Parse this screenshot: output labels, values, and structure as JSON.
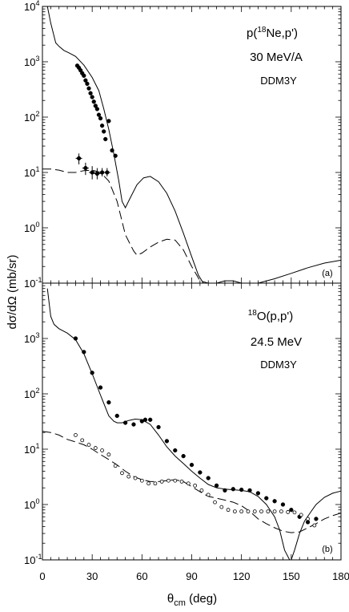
{
  "figure": {
    "ylabel": "dσ/dΩ (mb/sr)",
    "xlabel_main": "θ",
    "xlabel_sub": "cm",
    "xlabel_rest": " (deg)",
    "xticks": [
      "0",
      "30",
      "60",
      "90",
      "120",
      "150",
      "180"
    ]
  },
  "chart_data": [
    {
      "type": "scatter",
      "panel_tag": "(a)",
      "annotation": {
        "line1_pre": "p(",
        "line1_sup": "18",
        "line1_post": "Ne,p')",
        "line2": "30 MeV/A",
        "line3": "DDM3Y"
      },
      "xlim": [
        0,
        180
      ],
      "ylim": [
        0.1,
        10000
      ],
      "yscale": "log",
      "yticks": [
        {
          "base": "10",
          "exp": "4"
        },
        {
          "base": "10",
          "exp": "3"
        },
        {
          "base": "10",
          "exp": "2"
        },
        {
          "base": "10",
          "exp": "1"
        },
        {
          "base": "10",
          "exp": "0"
        },
        {
          "base": "10",
          "exp": "-1"
        }
      ],
      "series": [
        {
          "style": "solid-line",
          "x": [
            3,
            5,
            8,
            10,
            13,
            16,
            20,
            25,
            30,
            34,
            37,
            40,
            43,
            46,
            48,
            50,
            53,
            57,
            61,
            65,
            70,
            75,
            80,
            85,
            90,
            94,
            97,
            100,
            102,
            105,
            110,
            115,
            120,
            125,
            130,
            140,
            150,
            160,
            170,
            180
          ],
          "y": [
            10000,
            5000,
            2200,
            1900,
            1600,
            1450,
            1250,
            870,
            520,
            300,
            140,
            60,
            22,
            7.2,
            3.0,
            2.3,
            3.5,
            6.0,
            8.0,
            8.5,
            6.8,
            4.2,
            2.0,
            0.8,
            0.3,
            0.14,
            0.1,
            0.1,
            0.1,
            0.1,
            0.11,
            0.11,
            0.1,
            0.1,
            0.1,
            0.12,
            0.15,
            0.19,
            0.23,
            0.26
          ]
        },
        {
          "style": "dashed-line",
          "x": [
            0,
            5,
            10,
            15,
            20,
            25,
            30,
            35,
            40,
            45,
            50,
            53,
            55,
            57,
            60,
            65,
            70,
            75,
            80,
            85,
            90,
            95,
            100
          ],
          "y": [
            11.5,
            11.5,
            11.0,
            10.0,
            10.0,
            10.8,
            11.0,
            10.0,
            7.0,
            3.0,
            0.75,
            0.5,
            0.38,
            0.32,
            0.35,
            0.45,
            0.55,
            0.62,
            0.6,
            0.4,
            0.2,
            0.11,
            0.1
          ]
        },
        {
          "style": "filled-points",
          "x": [
            21,
            22,
            23,
            24,
            25,
            26,
            27,
            28,
            29,
            30,
            31,
            32,
            33,
            34,
            35,
            36,
            37,
            38,
            40,
            42,
            44
          ],
          "y": [
            850,
            780,
            700,
            620,
            560,
            460,
            400,
            330,
            270,
            230,
            190,
            160,
            140,
            110,
            95,
            70,
            55,
            40,
            85,
            25,
            20
          ]
        },
        {
          "style": "filled-points-with-errorbars",
          "x": [
            22,
            26,
            30,
            33,
            36,
            39
          ],
          "y": [
            18,
            12,
            10,
            9.5,
            10,
            10
          ],
          "err_lo": [
            14,
            9,
            7.5,
            7.5,
            8.5,
            8.5
          ],
          "err_hi": [
            22,
            15,
            13,
            12,
            12,
            12
          ]
        }
      ]
    },
    {
      "type": "scatter",
      "panel_tag": "(b)",
      "annotation": {
        "line1_pre": "",
        "line1_sup": "18",
        "line1_post": "O(p,p')",
        "line2": "24.5 MeV",
        "line3": "DDM3Y"
      },
      "xlim": [
        0,
        180
      ],
      "ylim": [
        0.1,
        10000
      ],
      "yscale": "log",
      "yticks": [
        {
          "base": "10",
          "exp": "3"
        },
        {
          "base": "10",
          "exp": "2"
        },
        {
          "base": "10",
          "exp": "1"
        },
        {
          "base": "10",
          "exp": "0"
        },
        {
          "base": "10",
          "exp": "-1"
        }
      ],
      "series": [
        {
          "style": "solid-line",
          "x": [
            3,
            5,
            7,
            10,
            15,
            20,
            25,
            30,
            35,
            40,
            43,
            45,
            48,
            52,
            56,
            60,
            65,
            70,
            75,
            80,
            85,
            90,
            95,
            100,
            105,
            110,
            115,
            120,
            125,
            130,
            135,
            140,
            143,
            146,
            149,
            150,
            152,
            155,
            158,
            162,
            165,
            170,
            175,
            180
          ],
          "y": [
            8000,
            2500,
            1800,
            1500,
            1250,
            950,
            530,
            230,
            95,
            40,
            32,
            30,
            30,
            33,
            35,
            34,
            28,
            18,
            11,
            7.5,
            5.5,
            4.0,
            3.0,
            2.3,
            2.0,
            1.9,
            1.85,
            1.8,
            1.7,
            1.4,
            1.0,
            0.6,
            0.35,
            0.15,
            0.1,
            0.1,
            0.15,
            0.3,
            0.5,
            0.75,
            1.0,
            1.35,
            1.6,
            1.75
          ]
        },
        {
          "style": "dashed-line",
          "x": [
            0,
            5,
            10,
            15,
            20,
            25,
            30,
            35,
            40,
            45,
            50,
            55,
            60,
            65,
            70,
            75,
            80,
            85,
            90,
            95,
            100,
            105,
            110,
            115,
            120,
            125,
            130,
            135,
            140,
            145,
            150,
            155,
            160,
            165,
            170,
            175,
            180
          ],
          "y": [
            21,
            20,
            18,
            15,
            13.5,
            12,
            10,
            8,
            6.5,
            5.2,
            4.0,
            3.2,
            2.8,
            2.6,
            2.6,
            2.7,
            2.8,
            2.6,
            2.1,
            1.7,
            1.4,
            1.3,
            1.2,
            1.1,
            0.95,
            0.75,
            0.55,
            0.45,
            0.38,
            0.33,
            0.31,
            0.32,
            0.38,
            0.45,
            0.55,
            0.63,
            0.7
          ]
        },
        {
          "style": "filled-points",
          "x": [
            20,
            25,
            30,
            35,
            40,
            45,
            50,
            55,
            60,
            62,
            65,
            70,
            75,
            80,
            85,
            90,
            95,
            100,
            105,
            110,
            115,
            120,
            125,
            130,
            135,
            140,
            145,
            150,
            155,
            160,
            165
          ],
          "y": [
            1000,
            570,
            240,
            130,
            70,
            40,
            30,
            28,
            32,
            34,
            34,
            25,
            14,
            9.5,
            7.5,
            5.2,
            3.8,
            3.0,
            2.2,
            1.8,
            1.9,
            1.85,
            1.8,
            1.6,
            1.3,
            1.15,
            1.0,
            0.8,
            0.6,
            0.48,
            0.55
          ]
        },
        {
          "style": "open-points",
          "x": [
            20,
            24,
            28,
            32,
            36,
            40,
            44,
            48,
            52,
            56,
            60,
            64,
            68,
            72,
            76,
            80,
            84,
            88,
            92,
            96,
            100,
            104,
            108,
            112,
            116,
            120,
            124,
            128,
            132,
            136,
            140,
            144,
            148,
            152,
            156,
            160,
            164
          ],
          "y": [
            18,
            14.5,
            12,
            10.5,
            9.5,
            8,
            5.0,
            3.7,
            3.2,
            3.0,
            2.7,
            2.4,
            2.4,
            2.6,
            2.7,
            2.7,
            2.6,
            2.4,
            2.2,
            1.8,
            1.5,
            1.1,
            0.9,
            0.8,
            0.75,
            0.75,
            0.75,
            0.75,
            0.75,
            0.75,
            0.75,
            0.75,
            0.73,
            0.72,
            0.65,
            0.55,
            0.42
          ]
        }
      ]
    }
  ]
}
